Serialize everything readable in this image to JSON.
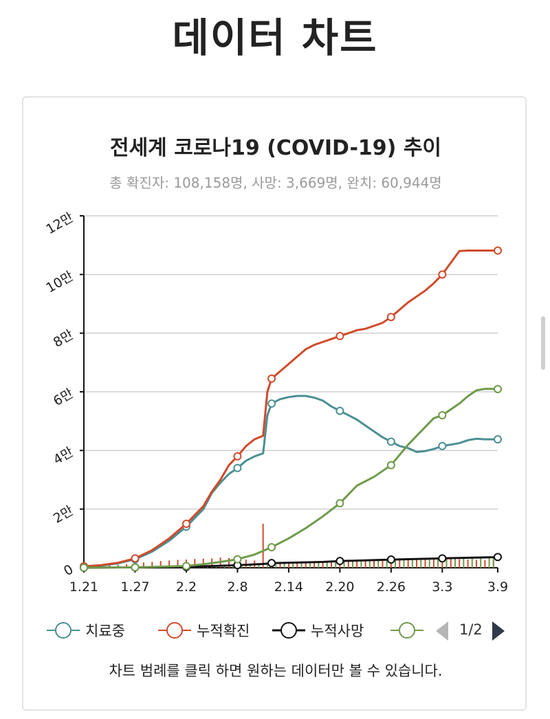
{
  "page": {
    "title": "데이터 차트"
  },
  "chart_data": {
    "type": "line",
    "title": "전세계 코로나19 (COVID-19) 추이",
    "subtitle": "총 확진자: 108,158명, 사망: 3,669명, 완치: 60,944명",
    "x_ticks": [
      "1.21",
      "1.27",
      "2.2",
      "2.8",
      "2.14",
      "2.20",
      "2.26",
      "3.3",
      "3.9"
    ],
    "y_ticks": [
      "0",
      "2만",
      "4만",
      "6만",
      "8만",
      "10만",
      "12만"
    ],
    "ylim": [
      0,
      120000
    ],
    "xlim": [
      0,
      48.5
    ],
    "grid": true,
    "legend_position": "bottom",
    "series": [
      {
        "name": "치료중",
        "color": "#4a8f93",
        "x": [
          0,
          2,
          4,
          6,
          8,
          10,
          12,
          14,
          15,
          16,
          17,
          18,
          19,
          20,
          21,
          21.5,
          22,
          23,
          24,
          25,
          26,
          27,
          28,
          29,
          30,
          31,
          32,
          33,
          34,
          35,
          36,
          37,
          38,
          39,
          40,
          41,
          42,
          43,
          44,
          45,
          46,
          47,
          48.5
        ],
        "y": [
          400,
          700,
          1500,
          2900,
          5500,
          9200,
          14000,
          20000,
          25500,
          29000,
          32000,
          34000,
          36500,
          38000,
          39000,
          52000,
          56000,
          57500,
          58200,
          58600,
          58600,
          58000,
          57000,
          55000,
          53500,
          52000,
          50500,
          48500,
          46500,
          44500,
          43000,
          41500,
          40800,
          39500,
          39800,
          40500,
          41500,
          42000,
          42500,
          43500,
          44000,
          43800,
          43800
        ],
        "markers": [
          0,
          6,
          12,
          18,
          22,
          30,
          36,
          42,
          48.5
        ]
      },
      {
        "name": "누적확진",
        "color": "#d04a2a",
        "x": [
          0,
          2,
          4,
          6,
          8,
          10,
          12,
          14,
          15,
          16,
          17,
          18,
          19,
          20,
          21,
          21.5,
          22,
          23,
          24,
          25,
          26,
          27,
          28,
          29,
          30,
          31,
          32,
          33,
          34,
          35,
          36,
          37,
          38,
          39,
          40,
          41,
          42,
          43,
          44,
          45,
          46,
          47,
          48,
          48.5
        ],
        "y": [
          500,
          900,
          1700,
          3200,
          6000,
          10000,
          15000,
          21000,
          26000,
          30000,
          35000,
          38000,
          41500,
          43800,
          45000,
          60000,
          64500,
          67000,
          69500,
          72000,
          74500,
          76000,
          77000,
          78000,
          79000,
          80000,
          81000,
          81500,
          82500,
          83500,
          85500,
          88000,
          90500,
          92500,
          94500,
          97000,
          100000,
          104000,
          108000,
          108158,
          108158,
          108158,
          108158,
          108158
        ],
        "markers": [
          0,
          6,
          12,
          18,
          22,
          30,
          36,
          42,
          48.5
        ]
      },
      {
        "name": "누적사망",
        "color": "#111111",
        "x": [
          0,
          6,
          12,
          14,
          18,
          21,
          22,
          28,
          30,
          36,
          42,
          48,
          48.5
        ],
        "y": [
          17,
          150,
          300,
          500,
          900,
          1300,
          1600,
          2000,
          2300,
          2800,
          3200,
          3600,
          3669
        ],
        "markers": [
          0,
          6,
          12,
          18,
          22,
          30,
          36,
          42,
          48.5
        ]
      },
      {
        "name": "",
        "color": "#6e9a4a",
        "x": [
          0,
          6,
          12,
          14,
          16,
          18,
          20,
          22,
          24,
          26,
          28,
          30,
          31,
          32,
          34,
          36,
          38,
          40,
          41,
          42,
          43,
          44,
          45,
          46,
          47,
          48,
          48.5
        ],
        "y": [
          50,
          150,
          600,
          1200,
          2000,
          2900,
          4500,
          7000,
          10000,
          13500,
          17500,
          22000,
          25000,
          28000,
          31000,
          35000,
          42000,
          48000,
          51000,
          52000,
          54000,
          56000,
          58500,
          60500,
          61000,
          61000,
          60944
        ],
        "markers": [
          0,
          6,
          12,
          18,
          22,
          30,
          36,
          42,
          48.5
        ]
      }
    ],
    "bars": {
      "red": {
        "color": "#d04a2a",
        "x": [
          0,
          1,
          2,
          3,
          4,
          5,
          6,
          7,
          8,
          9,
          10,
          11,
          12,
          13,
          14,
          15,
          16,
          17,
          18,
          19,
          20,
          21,
          22,
          23,
          24,
          25,
          26,
          27,
          28,
          29,
          30,
          31,
          32,
          33,
          34,
          35,
          36,
          37,
          38,
          39,
          40,
          41,
          42,
          43,
          44,
          45,
          46,
          47,
          48
        ],
        "values": [
          300,
          400,
          600,
          800,
          1000,
          1200,
          1500,
          1800,
          2000,
          2300,
          2500,
          2700,
          2800,
          3000,
          3100,
          3200,
          3500,
          3300,
          3000,
          2800,
          2500,
          15000,
          2000,
          1900,
          1800,
          1700,
          1600,
          1700,
          1800,
          2000,
          2100,
          2200,
          2300,
          2400,
          2500,
          2600,
          2700,
          2800,
          2900,
          3000,
          3000,
          3100,
          3200,
          3000,
          2900,
          2800,
          2700,
          2600,
          2500
        ]
      },
      "green": {
        "color": "#6e9a4a",
        "x": [
          0.5,
          1.5,
          2.5,
          3.5,
          4.5,
          5.5,
          6.5,
          7.5,
          8.5,
          9.5,
          10.5,
          11.5,
          12.5,
          13.5,
          14.5,
          15.5,
          16.5,
          17.5,
          18.5,
          19.5,
          20.5,
          21.5,
          22.5,
          23.5,
          24.5,
          25.5,
          26.5,
          27.5,
          28.5,
          29.5,
          30.5,
          31.5,
          32.5,
          33.5,
          34.5,
          35.5,
          36.5,
          37.5,
          38.5,
          39.5,
          40.5,
          41.5,
          42.5,
          43.5,
          44.5,
          45.5,
          46.5,
          47.5,
          48.0
        ],
        "values": [
          0,
          0,
          0,
          0,
          0,
          100,
          200,
          200,
          300,
          300,
          400,
          500,
          600,
          700,
          800,
          900,
          900,
          1000,
          1100,
          1200,
          1300,
          1400,
          1500,
          1600,
          1700,
          1700,
          1800,
          1900,
          2000,
          2100,
          2200,
          2200,
          2300,
          2400,
          2500,
          2600,
          2600,
          2700,
          2800,
          2900,
          3000,
          3000,
          3100,
          3200,
          3200,
          3300,
          3300,
          3400,
          3400
        ]
      }
    }
  },
  "legend": {
    "items": [
      {
        "label": "치료중",
        "color": "#4a8f93"
      },
      {
        "label": "누적확진",
        "color": "#d04a2a"
      },
      {
        "label": "누적사망",
        "color": "#111111"
      },
      {
        "label": "",
        "color": "#6e9a4a"
      }
    ],
    "pager": "1/2"
  },
  "note": "차트 범례를 클릭 하면 원하는 데이터만 볼 수 있습니다."
}
